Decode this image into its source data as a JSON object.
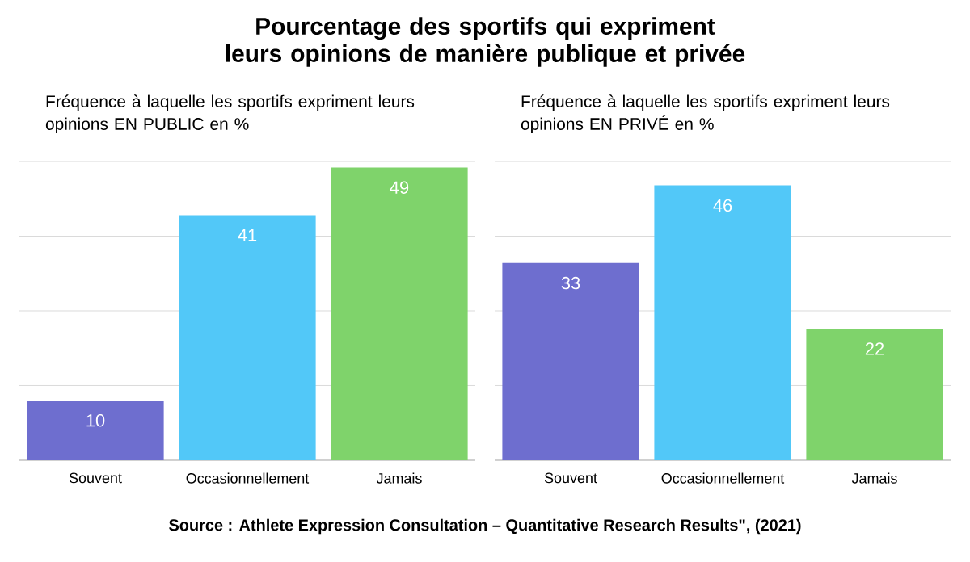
{
  "chart_data": [
    {
      "type": "other",
      "title": "Pourcentage des sportifs qui expriment leurs opinions de manière publique et privée",
      "annotations": [
        "Source : Athlete Expression Consultation – Quantitative Research Results\", (2021)"
      ]
    },
    {
      "type": "bar",
      "title": "Fréquence à laquelle les sportifs expriment leurs opinions EN PUBLIC en %",
      "categories": [
        "Souvent",
        "Occasionnellement",
        "Jamais"
      ],
      "values": [
        10,
        41,
        49
      ],
      "colors": [
        "#6e6ecf",
        "#52c8f8",
        "#7fd36b"
      ],
      "ylim": [
        0,
        50
      ],
      "yticks": [
        {
          "value": 0,
          "label": null
        },
        {
          "value": 12.5,
          "label": null
        },
        {
          "value": 25,
          "label": null
        },
        {
          "value": 37.5,
          "label": null
        },
        {
          "value": 50,
          "label": null
        }
      ],
      "grid": "y",
      "tick_labels": "x",
      "data_labels": true
    },
    {
      "type": "bar",
      "title": "Fréquence à laquelle les sportifs expriment leurs opinions EN PRIVÉ en %",
      "categories": [
        "Souvent",
        "Occasionnellement",
        "Jamais"
      ],
      "values": [
        33,
        46,
        22
      ],
      "colors": [
        "#6e6ecf",
        "#52c8f8",
        "#7fd36b"
      ],
      "ylim": [
        0,
        50
      ],
      "yticks": [
        {
          "value": 0,
          "label": null
        },
        {
          "value": 12.5,
          "label": null
        },
        {
          "value": 25,
          "label": null
        },
        {
          "value": 37.5,
          "label": null
        },
        {
          "value": 50,
          "label": null
        }
      ],
      "grid": "y",
      "tick_labels": "x",
      "data_labels": true
    }
  ]
}
